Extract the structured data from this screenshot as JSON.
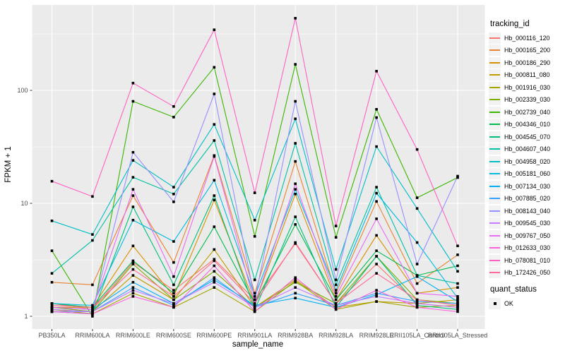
{
  "figure": {
    "background": "#FFFFFF",
    "panel_bg": "#EBEBEB",
    "grid_color": "#FFFFFF",
    "tick_label_color": "#4D4D4D",
    "axis_title_color": "#000000",
    "point_color": "#000000"
  },
  "chart_data": {
    "type": "line",
    "title": "",
    "xlabel": "sample_name",
    "ylabel": "FPKM + 1",
    "y_scale": "log10",
    "y_ticks": [
      1,
      10,
      100
    ],
    "y_tick_labels": [
      "1",
      "10",
      "100"
    ],
    "y_minor_ticks": [
      3.16,
      31.6,
      316
    ],
    "ylim": [
      0.87,
      570
    ],
    "grid": true,
    "legend_position": "right",
    "point_marker": "filled-black-square",
    "categories": [
      "PB350LA",
      "RRIM600LA",
      "RRIM600LE",
      "RRIM600SE",
      "RRIM600PE",
      "RRIM901LA",
      "RRIM928BA",
      "RRIM928LA",
      "RRIM928LE",
      "RRII105LA_Control",
      "RRII105LA_Stressed"
    ],
    "series": [
      {
        "name": "Hb_000116_120",
        "color": "#F8766D",
        "values": [
          1.3,
          1.15,
          3.0,
          1.7,
          3.2,
          1.4,
          4.4,
          1.3,
          2.9,
          1.3,
          1.2
        ]
      },
      {
        "name": "Hb_000165_200",
        "color": "#EA8331",
        "values": [
          2.0,
          1.9,
          11.7,
          3.0,
          26.5,
          1.6,
          23.5,
          1.6,
          10.4,
          1.95,
          3.5
        ]
      },
      {
        "name": "Hb_000186_290",
        "color": "#D89000",
        "values": [
          1.2,
          1.2,
          4.2,
          1.5,
          10.7,
          1.3,
          12.1,
          1.4,
          5.2,
          1.6,
          1.8
        ]
      },
      {
        "name": "Hb_000811_080",
        "color": "#C09B00",
        "values": [
          1.1,
          1.1,
          2.3,
          1.4,
          3.9,
          1.2,
          2.1,
          1.2,
          1.35,
          1.3,
          1.4
        ]
      },
      {
        "name": "Hb_001916_030",
        "color": "#A3A500",
        "values": [
          1.15,
          1.05,
          1.6,
          1.2,
          1.8,
          1.1,
          2.05,
          1.15,
          1.35,
          1.2,
          1.25
        ]
      },
      {
        "name": "Hb_002339_030",
        "color": "#7CAE00",
        "values": [
          1.2,
          1.1,
          2.9,
          1.4,
          2.5,
          1.2,
          2.0,
          1.3,
          3.4,
          1.4,
          1.3
        ]
      },
      {
        "name": "Hb_002739_040",
        "color": "#39B600",
        "values": [
          3.8,
          1.0,
          80,
          58,
          160,
          5.1,
          170,
          5.0,
          68,
          11.2,
          16.9
        ]
      },
      {
        "name": "Hb_004346_010",
        "color": "#00BB4E",
        "values": [
          1.3,
          1.2,
          3.1,
          1.6,
          6.2,
          1.3,
          6.5,
          1.4,
          3.8,
          2.3,
          2.8
        ]
      },
      {
        "name": "Hb_004545_070",
        "color": "#00BF7D",
        "values": [
          1.1,
          1.05,
          9.3,
          1.9,
          11.7,
          1.15,
          7.6,
          1.2,
          3.4,
          1.25,
          1.15
        ]
      },
      {
        "name": "Hb_004607_040",
        "color": "#00C1A3",
        "values": [
          2.4,
          4.7,
          17,
          12.1,
          36,
          2.1,
          34,
          1.9,
          13.9,
          2.3,
          1.95
        ]
      },
      {
        "name": "Hb_004958_020",
        "color": "#00BFC4",
        "values": [
          7.0,
          5.3,
          24,
          13.9,
          50,
          7.1,
          56,
          2.6,
          31.8,
          9.0,
          2.5
        ]
      },
      {
        "name": "Hb_005181_060",
        "color": "#00BAE0",
        "values": [
          1.3,
          1.25,
          7.1,
          4.6,
          16,
          1.5,
          13.3,
          1.7,
          12.3,
          4.5,
          1.45
        ]
      },
      {
        "name": "Hb_007134_030",
        "color": "#00B0F6",
        "values": [
          1.2,
          1.15,
          2.0,
          1.3,
          2.1,
          1.25,
          1.45,
          1.2,
          1.55,
          2.25,
          1.35
        ]
      },
      {
        "name": "Hb_007885_020",
        "color": "#35A2FF",
        "values": [
          1.15,
          1.1,
          1.8,
          1.25,
          2.2,
          1.2,
          1.6,
          1.25,
          1.6,
          1.35,
          1.3
        ]
      },
      {
        "name": "Hb_008143_040",
        "color": "#9590FF",
        "values": [
          1.1,
          1.1,
          28.3,
          10.3,
          93,
          1.4,
          80,
          2.1,
          57.5,
          2.9,
          17.4
        ]
      },
      {
        "name": "Hb_009545_030",
        "color": "#C77CFF",
        "values": [
          1.15,
          1.1,
          1.7,
          1.3,
          2.0,
          1.2,
          1.8,
          1.25,
          1.5,
          1.3,
          1.2
        ]
      },
      {
        "name": "Hb_009767_050",
        "color": "#E76BF3",
        "values": [
          1.2,
          1.15,
          13.3,
          2.25,
          26,
          1.3,
          14.9,
          1.5,
          7.3,
          1.6,
          1.5
        ]
      },
      {
        "name": "Hb_012633_030",
        "color": "#FA62DB",
        "values": [
          1.1,
          1.05,
          1.5,
          1.2,
          2.8,
          1.1,
          2.2,
          1.15,
          1.7,
          1.2,
          1.1
        ]
      },
      {
        "name": "Hb_078081_010",
        "color": "#FF61C3",
        "values": [
          15.7,
          11.5,
          116,
          72,
          344,
          12.4,
          435,
          6.3,
          148,
          30,
          4.2
        ]
      },
      {
        "name": "Hb_172426_050",
        "color": "#FF6A98",
        "values": [
          1.25,
          1.2,
          2.6,
          1.5,
          3.1,
          1.3,
          4.5,
          1.3,
          2.4,
          1.4,
          1.25
        ]
      }
    ],
    "legend": {
      "title": "tracking_id"
    },
    "legend2": {
      "title": "quant_status",
      "items": [
        {
          "label": "OK"
        }
      ]
    }
  }
}
